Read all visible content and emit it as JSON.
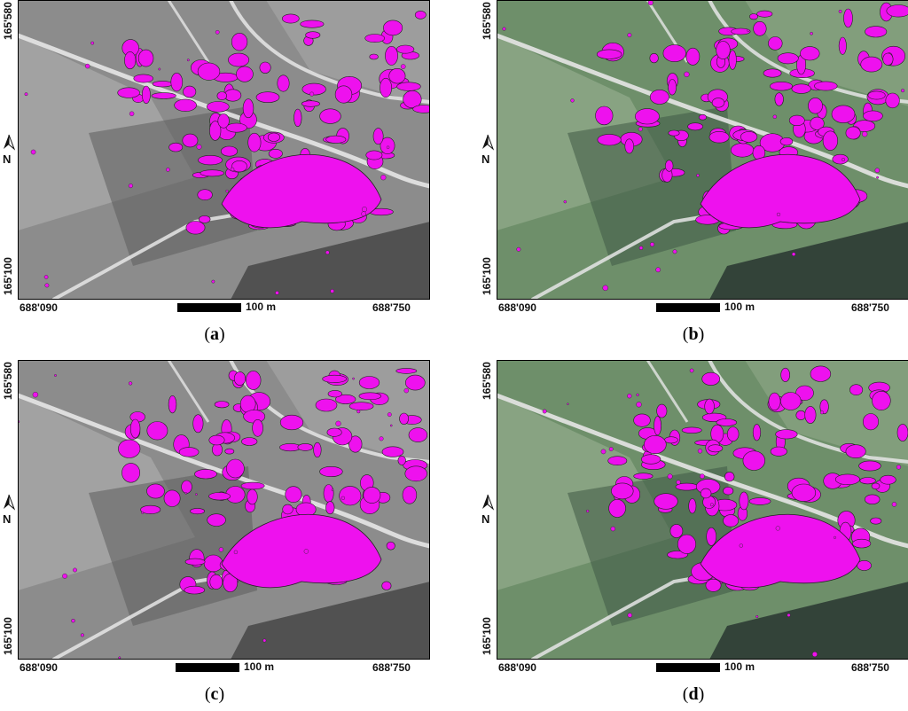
{
  "panels": [
    {
      "id": "a",
      "label_open": "(",
      "label_letter": "a",
      "label_close": ")",
      "imagery": "grayscale-historical-orthophoto",
      "y_top": "165'580",
      "y_bottom": "165'100",
      "x_left": "688'090",
      "x_right": "688'750",
      "north": "N",
      "scale_text": "100 m"
    },
    {
      "id": "b",
      "label_open": "(",
      "label_letter": "b",
      "label_close": ")",
      "imagery": "color-orthophoto",
      "y_top": "165'580",
      "y_bottom": "165'100",
      "x_left": "688'090",
      "x_right": "688'750",
      "north": "N",
      "scale_text": "100 m"
    },
    {
      "id": "c",
      "label_open": "(",
      "label_letter": "c",
      "label_close": ")",
      "imagery": "grayscale-historical-orthophoto",
      "y_top": "165'580",
      "y_bottom": "165'100",
      "x_left": "688'090",
      "x_right": "688'750",
      "north": "N",
      "scale_text": "100 m"
    },
    {
      "id": "d",
      "label_open": "(",
      "label_letter": "d",
      "label_close": ")",
      "imagery": "color-orthophoto",
      "y_top": "165'580",
      "y_bottom": "165'100",
      "x_left": "688'090",
      "x_right": "688'750",
      "north": "N",
      "scale_text": "100 m"
    }
  ],
  "colors": {
    "building_overlay": "#ee11ee",
    "overlay_outline": "#222222",
    "gray_field": "#8c8c8c",
    "gray_dark": "#5c5c5c",
    "gray_light": "#a8a8a8",
    "green_field": "#6e8f6a",
    "green_dark": "#3f5a45",
    "forest": "#2c3b34",
    "road": "#e6e6e6"
  },
  "icons": {
    "north_arrow": "north-arrow-icon"
  }
}
